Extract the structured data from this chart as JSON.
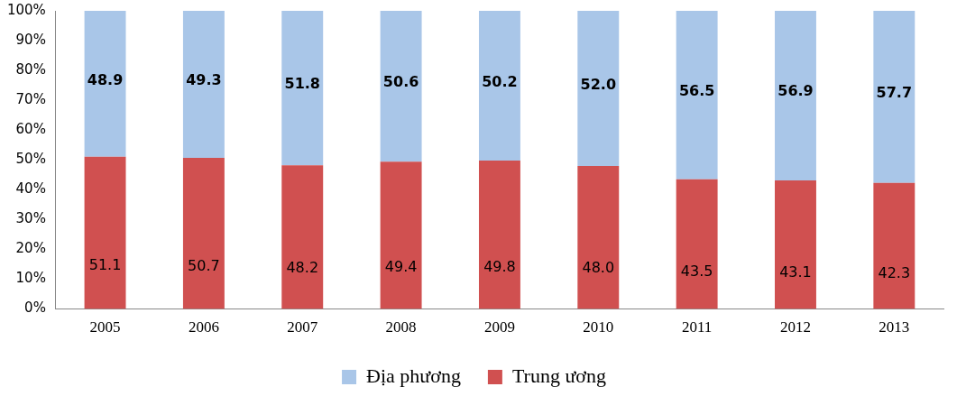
{
  "chart_data": {
    "type": "bar",
    "stacked": true,
    "categories": [
      "2005",
      "2006",
      "2007",
      "2008",
      "2009",
      "2010",
      "2011",
      "2012",
      "2013"
    ],
    "series": [
      {
        "name": "Trung ương",
        "color": "#d05050",
        "values": [
          51.1,
          50.7,
          48.2,
          49.4,
          49.8,
          48.0,
          43.5,
          43.1,
          42.3
        ],
        "value_labels": [
          "51.1",
          "50.7",
          "48.2",
          "49.4",
          "49.8",
          "48.0",
          "43.5",
          "43.1",
          "42.3"
        ]
      },
      {
        "name": "Địa phương",
        "color": "#a9c6e8",
        "values": [
          48.9,
          49.3,
          51.8,
          50.6,
          50.2,
          52.0,
          56.5,
          56.9,
          57.7
        ],
        "value_labels": [
          "48.9",
          "49.3",
          "51.8",
          "50.6",
          "50.2",
          "52.0",
          "56.5",
          "56.9",
          "57.7"
        ]
      }
    ],
    "ylim": [
      0,
      100
    ],
    "yticks": [
      {
        "value": 0,
        "label": "0%"
      },
      {
        "value": 10,
        "label": "10%"
      },
      {
        "value": 20,
        "label": "20%"
      },
      {
        "value": 30,
        "label": "30%"
      },
      {
        "value": 40,
        "label": "40%"
      },
      {
        "value": 50,
        "label": "50%"
      },
      {
        "value": 60,
        "label": "60%"
      },
      {
        "value": 70,
        "label": "70%"
      },
      {
        "value": 80,
        "label": "80%"
      },
      {
        "value": 90,
        "label": "90%"
      },
      {
        "value": 100,
        "label": "100%"
      }
    ],
    "grid": false,
    "legend": "bottom"
  }
}
